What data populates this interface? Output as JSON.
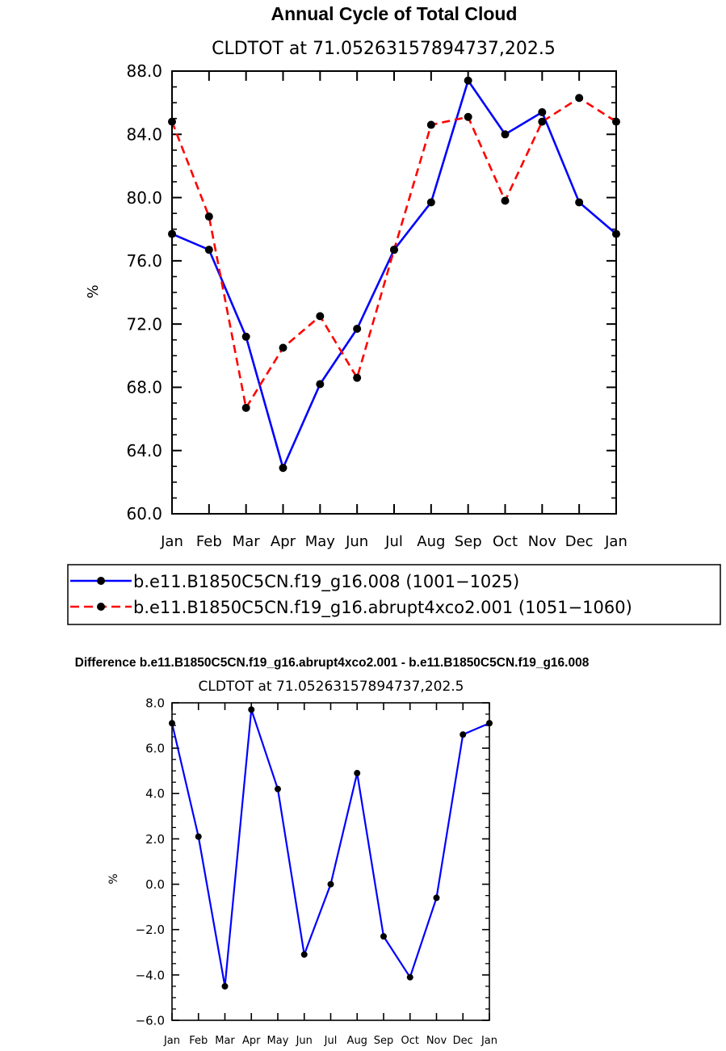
{
  "chart_data": [
    {
      "type": "line",
      "title": "Annual Cycle of Total Cloud",
      "subtitle": "CLDTOT at 71.05263157894737,202.5",
      "xlabel": "",
      "ylabel": "%",
      "categories": [
        "Jan",
        "Feb",
        "Mar",
        "Apr",
        "May",
        "Jun",
        "Jul",
        "Aug",
        "Sep",
        "Oct",
        "Nov",
        "Dec",
        "Jan"
      ],
      "ylim": [
        60.0,
        88.0
      ],
      "yticks": [
        60.0,
        64.0,
        68.0,
        72.0,
        76.0,
        80.0,
        84.0,
        88.0
      ],
      "ytick_labels": [
        "60.0",
        "64.0",
        "68.0",
        "72.0",
        "76.0",
        "80.0",
        "84.0",
        "88.0"
      ],
      "grid": false,
      "series": [
        {
          "name": "b.e11.B1850C5CN.f19_g16.008 (1001−1025)",
          "color": "#0000ff",
          "dash": "solid",
          "values": [
            77.7,
            76.7,
            71.2,
            62.9,
            68.2,
            71.7,
            76.7,
            79.7,
            87.4,
            84.0,
            85.4,
            79.7,
            77.7
          ]
        },
        {
          "name": "b.e11.B1850C5CN.f19_g16.abrupt4xco2.001 (1051−1060)",
          "color": "#ff0000",
          "dash": "dashed",
          "values": [
            84.8,
            78.8,
            66.7,
            70.5,
            72.5,
            68.6,
            76.7,
            84.6,
            85.1,
            79.8,
            84.8,
            86.3,
            84.8
          ]
        }
      ],
      "legend": {
        "placement": "below",
        "entries": [
          "b.e11.B1850C5CN.f19_g16.008 (1001−1025)",
          "b.e11.B1850C5CN.f19_g16.abrupt4xco2.001 (1051−1060)"
        ]
      }
    },
    {
      "type": "line",
      "title": "Difference b.e11.B1850C5CN.f19_g16.abrupt4xco2.001 - b.e11.B1850C5CN.f19_g16.008",
      "subtitle": "CLDTOT at 71.05263157894737,202.5",
      "xlabel": "",
      "ylabel": "%",
      "categories": [
        "Jan",
        "Feb",
        "Mar",
        "Apr",
        "May",
        "Jun",
        "Jul",
        "Aug",
        "Sep",
        "Oct",
        "Nov",
        "Dec",
        "Jan"
      ],
      "ylim": [
        -6.0,
        8.0
      ],
      "yticks": [
        -6.0,
        -4.0,
        -2.0,
        0.0,
        2.0,
        4.0,
        6.0,
        8.0
      ],
      "ytick_labels": [
        "−6.0",
        "−4.0",
        "−2.0",
        "0.0",
        "2.0",
        "4.0",
        "6.0",
        "8.0"
      ],
      "grid": false,
      "series": [
        {
          "name": "difference",
          "color": "#0000ff",
          "dash": "solid",
          "values": [
            7.1,
            2.1,
            -4.5,
            7.7,
            4.2,
            -3.1,
            0.0,
            4.9,
            -2.3,
            -4.1,
            -0.6,
            6.6,
            7.1
          ]
        }
      ]
    }
  ]
}
